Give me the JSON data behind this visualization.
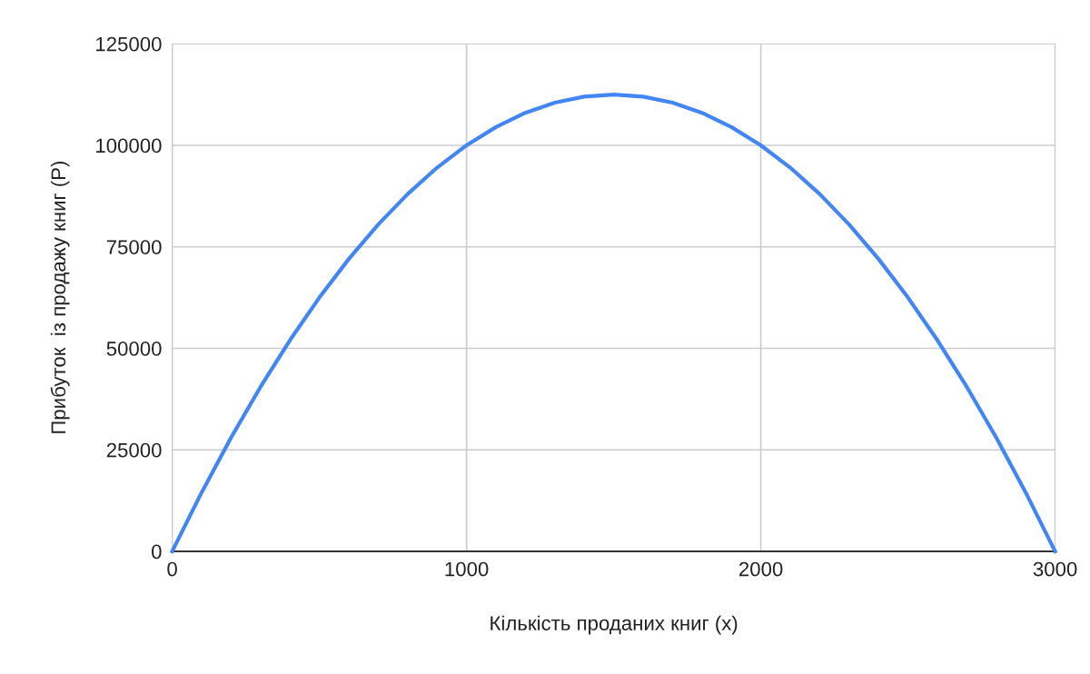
{
  "chart_data": {
    "type": "line",
    "xlabel": "Кількість проданих книг (x)",
    "ylabel": "Прибуток  із продажу книг (P)",
    "x": [
      0,
      100,
      200,
      300,
      400,
      500,
      600,
      700,
      800,
      900,
      1000,
      1100,
      1200,
      1300,
      1400,
      1500,
      1600,
      1700,
      1800,
      1900,
      2000,
      2100,
      2200,
      2300,
      2400,
      2500,
      2600,
      2700,
      2800,
      2900,
      3000
    ],
    "series": [
      {
        "color": "#4285f4",
        "values": [
          0,
          14500,
          28000,
          40500,
          52000,
          62500,
          72000,
          80500,
          88000,
          94500,
          100000,
          104500,
          108000,
          110500,
          112000,
          112500,
          112000,
          110500,
          108000,
          104500,
          100000,
          94500,
          88000,
          80500,
          72000,
          62500,
          52000,
          40500,
          28000,
          14500,
          0
        ]
      }
    ],
    "xlim": [
      0,
      3000
    ],
    "xticks": [
      0,
      1000,
      2000,
      3000
    ],
    "ylim": [
      0,
      125000
    ],
    "yticks": [
      0,
      25000,
      50000,
      75000,
      100000,
      125000
    ],
    "grid": true,
    "legend": false
  }
}
